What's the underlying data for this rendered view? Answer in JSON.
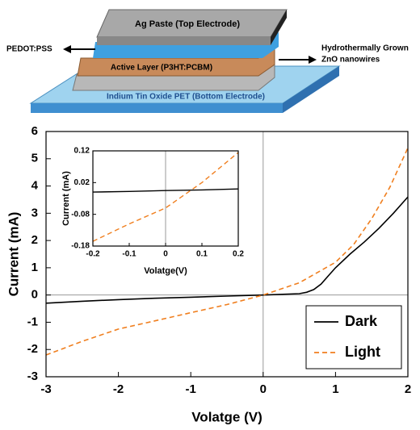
{
  "diagram": {
    "top_electrode": "Ag Paste (Top Electrode)",
    "active_layer": "Active Layer (P3HT:PCBM)",
    "bottom_electrode": "Indium Tin Oxide PET (Bottom Electrode)",
    "left_label": "PEDOT:PSS",
    "right_label": [
      "Hydrothermally Grown",
      "ZnO nanowires"
    ]
  },
  "chart_data": [
    {
      "type": "line",
      "xlabel": "Volatge (V)",
      "ylabel": "Current (mA)",
      "xlim": [
        -3,
        2
      ],
      "xticks": [
        -3,
        -2,
        -1,
        0,
        1,
        2
      ],
      "ylim": [
        -3,
        6
      ],
      "yticks": [
        -3,
        -2,
        -1,
        0,
        1,
        2,
        3,
        4,
        5,
        6
      ],
      "zero_lines": true,
      "legend": "lower right",
      "series": [
        {
          "name": "Dark",
          "color": "#000000",
          "dash": "solid",
          "x": [
            -3,
            -2.5,
            -2,
            -1.5,
            -1,
            -0.5,
            0,
            0.5,
            0.6,
            0.7,
            0.8,
            0.9,
            1,
            1.2,
            1.4,
            1.6,
            1.8,
            2
          ],
          "values": [
            -0.3,
            -0.23,
            -0.17,
            -0.12,
            -0.08,
            -0.04,
            0,
            0.05,
            0.1,
            0.2,
            0.4,
            0.7,
            1.0,
            1.5,
            1.95,
            2.45,
            3.0,
            3.6
          ]
        },
        {
          "name": "Light",
          "color": "#f07f1f",
          "dash": "dashed",
          "x": [
            -3,
            -2.5,
            -2,
            -1.5,
            -1,
            -0.5,
            0,
            0.5,
            1,
            1.25,
            1.5,
            1.75,
            2
          ],
          "values": [
            -2.2,
            -1.7,
            -1.25,
            -0.95,
            -0.65,
            -0.35,
            0,
            0.45,
            1.2,
            1.85,
            2.8,
            3.95,
            5.4
          ]
        }
      ]
    },
    {
      "type": "line",
      "xlabel": "Volatge(V)",
      "ylabel": "Current (mA)",
      "xlim": [
        -0.2,
        0.2
      ],
      "xticks": [
        -0.2,
        -0.1,
        0,
        0.1,
        0.2
      ],
      "ylim": [
        -0.18,
        0.12
      ],
      "yticks": [
        -0.18,
        -0.08,
        0.02,
        0.12
      ],
      "zero_lines": true,
      "series": [
        {
          "name": "Dark",
          "color": "#000000",
          "dash": "solid",
          "x": [
            -0.2,
            -0.1,
            0,
            0.1,
            0.2
          ],
          "values": [
            -0.01,
            -0.008,
            -0.005,
            -0.003,
            0.0
          ]
        },
        {
          "name": "Light",
          "color": "#f07f1f",
          "dash": "dashed",
          "x": [
            -0.2,
            -0.1,
            0,
            0.1,
            0.2
          ],
          "values": [
            -0.165,
            -0.11,
            -0.06,
            0.02,
            0.115
          ]
        }
      ]
    }
  ]
}
